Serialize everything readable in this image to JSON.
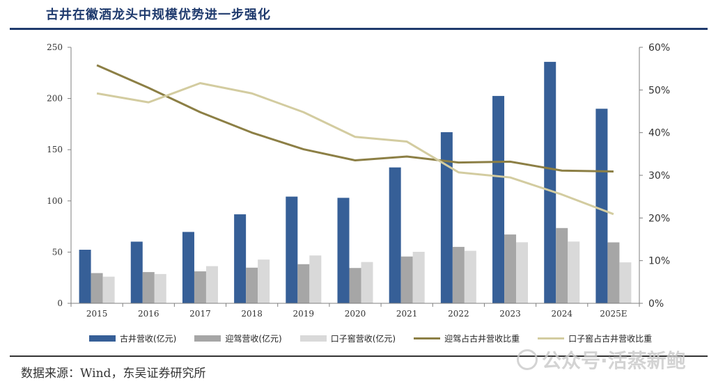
{
  "header": {
    "title": "古井在徽酒龙头中规模优势进一步强化"
  },
  "footer": {
    "source": "数据来源：Wind，东吴证券研究所",
    "watermark": "公众号·活蒸新鲍"
  },
  "chart_data": {
    "type": "bar",
    "title": "古井在徽酒龙头中规模优势进一步强化",
    "categories": [
      "2015",
      "2016",
      "2017",
      "2018",
      "2019",
      "2020",
      "2021",
      "2022",
      "2023",
      "2024",
      "2025E"
    ],
    "ylim": [
      0,
      250
    ],
    "yticks": [
      0,
      50,
      100,
      150,
      200,
      250
    ],
    "y2lim": [
      0,
      60
    ],
    "y2ticks": [
      "0%",
      "10%",
      "20%",
      "30%",
      "40%",
      "50%",
      "60%"
    ],
    "series": [
      {
        "name": "古井营收(亿元)",
        "kind": "bar",
        "color": "#365f97",
        "values": [
          52.3,
          60.2,
          69.7,
          86.9,
          104.2,
          103.0,
          132.7,
          167.1,
          202.5,
          235.8,
          190.0
        ]
      },
      {
        "name": "迎驾营收(亿元)",
        "kind": "bar",
        "color": "#a6a6a6",
        "values": [
          29.5,
          30.5,
          31.2,
          34.8,
          38.2,
          34.5,
          45.7,
          55.1,
          67.2,
          73.5,
          59.5
        ]
      },
      {
        "name": "口子窖营收(亿元)",
        "kind": "bar",
        "color": "#d9d9d9",
        "values": [
          26.0,
          28.6,
          36.3,
          42.7,
          46.7,
          40.3,
          50.3,
          51.3,
          59.6,
          60.3,
          40.0
        ]
      },
      {
        "name": "迎驾占古井营收比重",
        "kind": "line",
        "axis": "right",
        "color": "#8c7f45",
        "values": [
          55.8,
          50.5,
          44.8,
          40.0,
          36.1,
          33.5,
          34.4,
          33.0,
          33.2,
          31.1,
          30.9
        ]
      },
      {
        "name": "口子窖占古井营收比重",
        "kind": "line",
        "axis": "right",
        "color": "#d3cca0",
        "values": [
          49.2,
          47.1,
          51.6,
          49.2,
          44.8,
          39.0,
          37.9,
          30.7,
          29.5,
          25.5,
          20.9
        ]
      }
    ]
  }
}
